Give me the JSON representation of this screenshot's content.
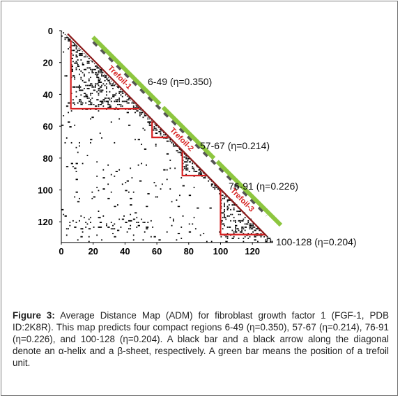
{
  "chart_data": {
    "type": "heatmap",
    "title": "",
    "xlabel": "",
    "ylabel": "",
    "xlim": [
      0,
      133
    ],
    "ylim": [
      133,
      0
    ],
    "x_ticks": [
      "0",
      "20",
      "40",
      "60",
      "80",
      "100",
      "120"
    ],
    "y_ticks": [
      "0",
      "20",
      "40",
      "60",
      "80",
      "100",
      "120"
    ],
    "regions": [
      {
        "label": "6-49 (η=0.350)",
        "start": 6,
        "end": 49,
        "eta": 0.35
      },
      {
        "label": "57-67 (η=0.214)",
        "start": 57,
        "end": 67,
        "eta": 0.214
      },
      {
        "label": "76-91 (η=0.226)",
        "start": 76,
        "end": 91,
        "eta": 0.226
      },
      {
        "label": "100-128 (η=0.204)",
        "start": 100,
        "end": 128,
        "eta": 0.204
      }
    ],
    "trefoils": [
      {
        "label": "Trefoil-1",
        "start": 12,
        "end": 54
      },
      {
        "label": "Trefoil-2",
        "start": 56,
        "end": 88
      },
      {
        "label": "Trefoil-3",
        "start": 90,
        "end": 130
      }
    ],
    "helix_bars": [],
    "beta_arrows": []
  },
  "colors": {
    "region_outline": "#d62020",
    "trefoil_bar": "#8dc63f",
    "diagonal_dash": "#555555",
    "contact": "#000000"
  },
  "caption": {
    "figure_label": "Figure 3:",
    "text": " Average Distance Map (ADM) for fibroblast growth factor 1 (FGF-1, PDB ID:2K8R). This map predicts four compact regions 6-49 (η=0.350), 57-67 (η=0.214), 76-91 (η=0.226), and 100-128 (η=0.204). A black bar and a black arrow along the diagonal denote an α-helix and a β-sheet, respectively. A green bar means the position of a trefoil unit."
  }
}
